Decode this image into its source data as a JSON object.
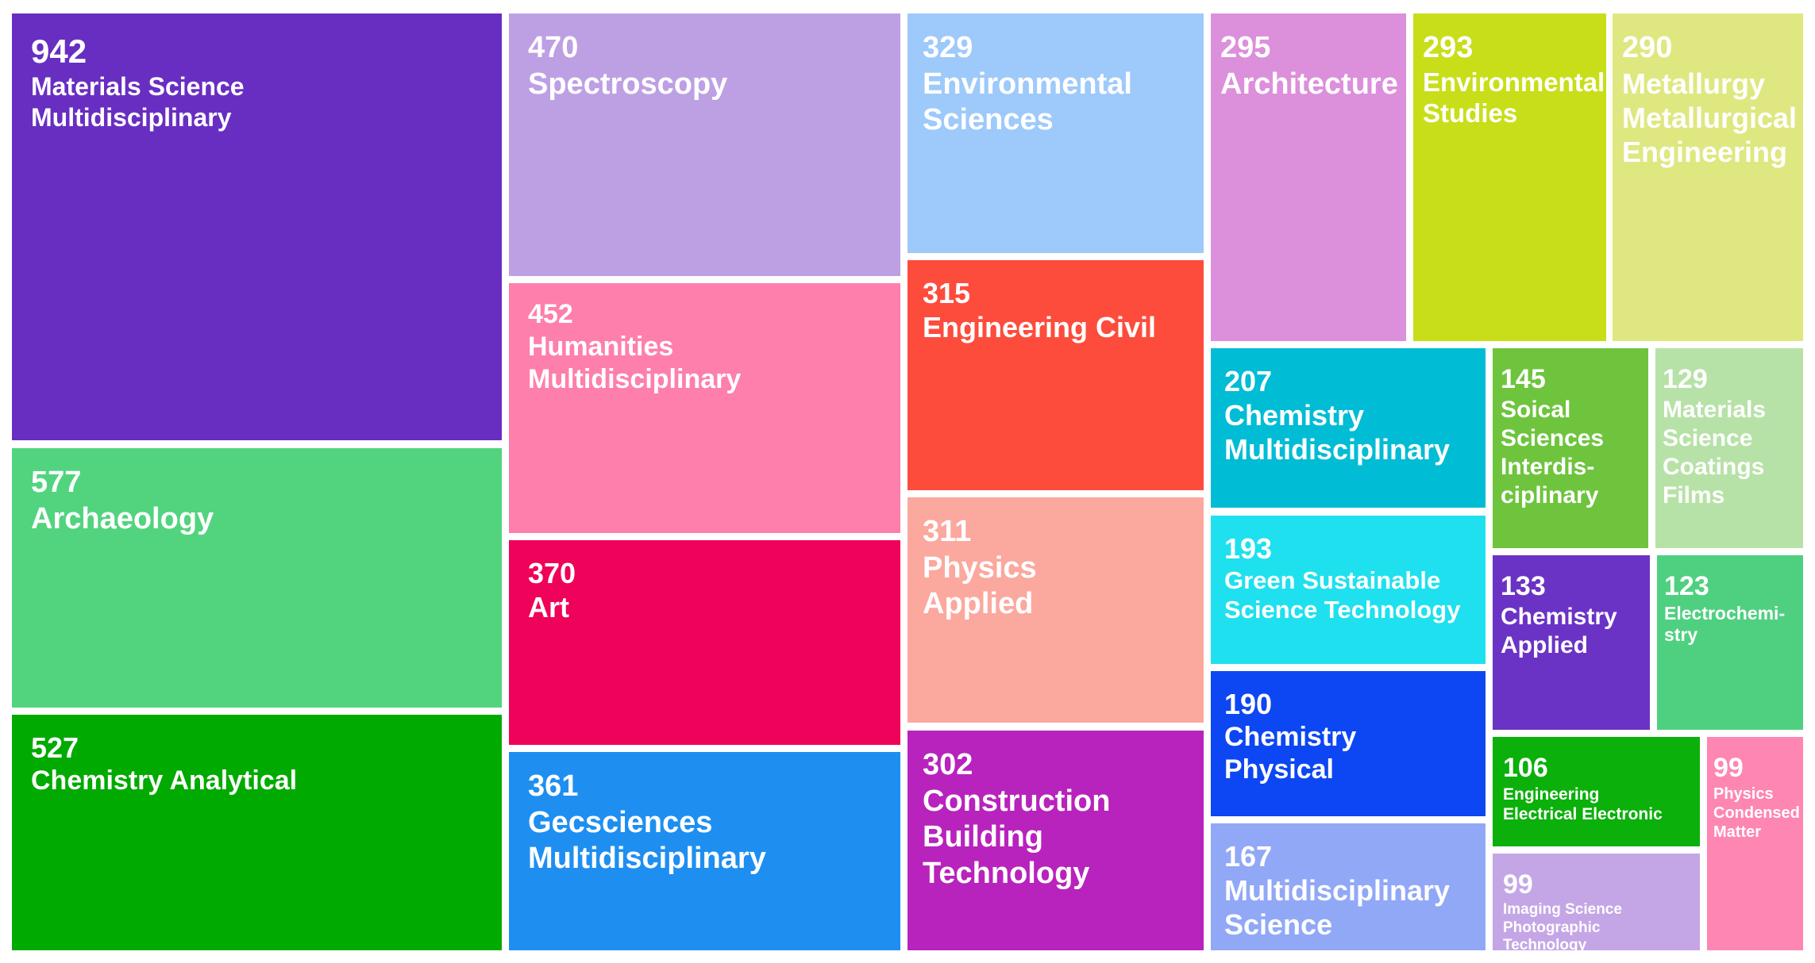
{
  "chart_data": {
    "type": "treemap",
    "items": [
      {
        "label": "Materials   Science\nMultidisciplinary",
        "value": 942,
        "color": "#682ec2"
      },
      {
        "label": "Archaeology",
        "value": 577,
        "color": "#52d47f"
      },
      {
        "label": "Chemistry Analytical",
        "value": 527,
        "color": "#00aa00"
      },
      {
        "label": "Spectroscopy",
        "value": 470,
        "color": "#bda0e3"
      },
      {
        "label": "Humanities\nMultidisciplinary",
        "value": 452,
        "color": "#fe7fac"
      },
      {
        "label": "Art",
        "value": 370,
        "color": "#ef0259"
      },
      {
        "label": "Gecsciences\nMultidisciplinary",
        "value": 361,
        "color": "#1e8ff1"
      },
      {
        "label": "Environmental\nSciences",
        "value": 329,
        "color": "#9ec9fb"
      },
      {
        "label": "Engineering Civil",
        "value": 315,
        "color": "#fd4c3c"
      },
      {
        "label": "Physics\nApplied",
        "value": 311,
        "color": "#fba89e"
      },
      {
        "label": "Construction\nBuilding\nTechnology",
        "value": 302,
        "color": "#b723bc"
      },
      {
        "label": "Architecture",
        "value": 295,
        "color": "#dc8fdb"
      },
      {
        "label": "Environmental\nStudies",
        "value": 293,
        "color": "#c8de19"
      },
      {
        "label": "Metallurgy\nMetallurgical\nEngineering",
        "value": 290,
        "color": "#dfe780"
      },
      {
        "label": "Chemistry\nMultidisciplinary",
        "value": 207,
        "color": "#00bcd5"
      },
      {
        "label": "Green      Sustainable\nScience Technology",
        "value": 193,
        "color": "#1fe0ee"
      },
      {
        "label": "Chemistry\nPhysical",
        "value": 190,
        "color": "#0d47f3"
      },
      {
        "label": "Multidisciplinary\nScience",
        "value": 167,
        "color": "#91a8f7"
      },
      {
        "label": "Soical\nSciences\nInterdis-\nciplinary",
        "value": 145,
        "color": "#6fc43e"
      },
      {
        "label": "Materials\nScience\nCoatings\nFilms",
        "value": 129,
        "color": "#b7e2a7"
      },
      {
        "label": "Chemistry\nApplied",
        "value": 133,
        "color": "#6a33c5"
      },
      {
        "label": "Electrochemi-\nstry",
        "value": 123,
        "color": "#4fd080"
      },
      {
        "label": "Engineering\nElectrical Electronic",
        "value": 106,
        "color": "#0bb00b"
      },
      {
        "label": "Physics\nCondensed\nMatter",
        "value": 99,
        "color": "#fe86b2"
      },
      {
        "label": "Imaging       Science\nPhotographic\nTechnology",
        "value": 99,
        "color": "#c4a6e6"
      }
    ]
  }
}
